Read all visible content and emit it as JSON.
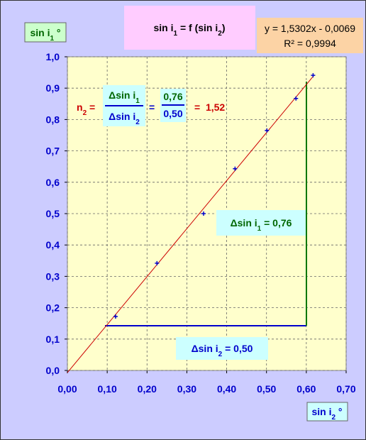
{
  "chart_data": {
    "type": "scatter",
    "title": [
      "sin i",
      "1",
      " = f (sin i",
      "2",
      ")"
    ],
    "y_label": [
      "sin i",
      "1",
      " °"
    ],
    "x_label": [
      "sin i",
      "2",
      " °"
    ],
    "x": [
      0.121,
      0.225,
      0.342,
      0.421,
      0.501,
      0.574,
      0.617
    ],
    "values": [
      0.172,
      0.342,
      0.5,
      0.643,
      0.765,
      0.867,
      0.941
    ],
    "color": "#0000cc",
    "xlim": [
      0,
      0.7
    ],
    "ylim": [
      0,
      1
    ],
    "xticks": [
      {
        "value": 0,
        "label": "0,00"
      },
      {
        "value": 0.1,
        "label": "0,10"
      },
      {
        "value": 0.2,
        "label": "0,20"
      },
      {
        "value": 0.3,
        "label": "0,30"
      },
      {
        "value": 0.4,
        "label": "0,40"
      },
      {
        "value": 0.5,
        "label": "0,50"
      },
      {
        "value": 0.6,
        "label": "0,60"
      },
      {
        "value": 0.7,
        "label": "0,70"
      }
    ],
    "yticks": [
      {
        "value": 0,
        "label": "0,0"
      },
      {
        "value": 0.1,
        "label": "0,1"
      },
      {
        "value": 0.2,
        "label": "0,2"
      },
      {
        "value": 0.3,
        "label": "0,3"
      },
      {
        "value": 0.4,
        "label": "0,4"
      },
      {
        "value": 0.5,
        "label": "0,5"
      },
      {
        "value": 0.6,
        "label": "0,6"
      },
      {
        "value": 0.7,
        "label": "0,7"
      },
      {
        "value": 0.8,
        "label": "0,8"
      },
      {
        "value": 0.9,
        "label": "0,9"
      },
      {
        "value": 1,
        "label": "1,0"
      }
    ],
    "grid": true,
    "trendline": {
      "slope": 1.5302,
      "intercept": -0.0069,
      "color": "#cc0000",
      "equation": "y = 1,5302x - 0,0069",
      "r2": "R² = 0,9994"
    },
    "formula": {
      "n": "n",
      "n_sub": "2",
      "eq": " =",
      "num": "Δsin i",
      "num_sub": "1",
      "den": "Δsin i",
      "den_sub": "2",
      "eq2": "=",
      "num2": "0,76",
      "den2": "0,50",
      "result": "=  1,52"
    },
    "delta_y": [
      "Δsin i",
      "1",
      " = 0,76"
    ],
    "delta_x": [
      "Δsin i",
      "2",
      " = 0,50"
    ]
  }
}
